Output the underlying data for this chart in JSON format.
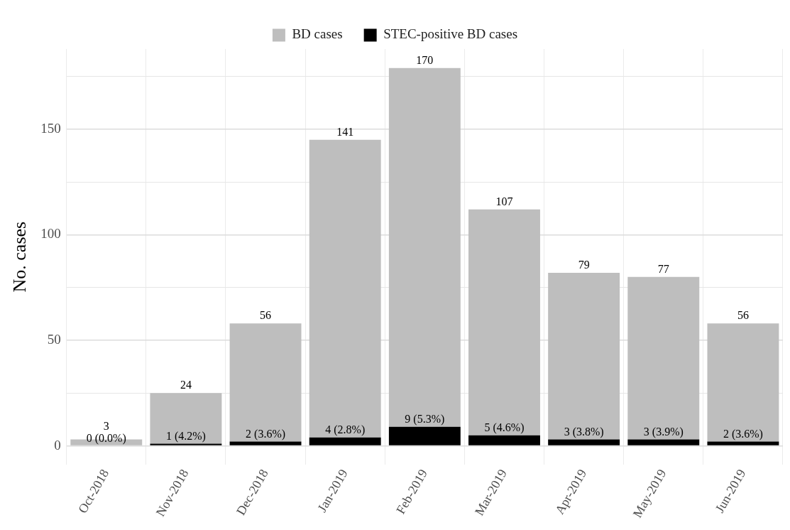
{
  "chart_data": {
    "type": "bar",
    "stacked": true,
    "ylabel": "No. cases",
    "categories": [
      "Oct-2018",
      "Nov-2018",
      "Dec-2018",
      "Jan-2019",
      "Feb-2019",
      "Mar-2019",
      "Apr-2019",
      "May-2019",
      "Jun-2019"
    ],
    "series": [
      {
        "name": "STEC-positive BD cases",
        "color": "#000000",
        "values": [
          0,
          1,
          2,
          4,
          9,
          5,
          3,
          3,
          2
        ],
        "value_labels": [
          "0 (0.0%)",
          "1 (4.2%)",
          "2 (3.6%)",
          "4 (2.8%)",
          "9 (5.3%)",
          "5 (4.6%)",
          "3 (3.8%)",
          "3 (3.9%)",
          "2 (3.6%)"
        ]
      },
      {
        "name": "BD cases",
        "color": "#bebebe",
        "values": [
          3,
          24,
          56,
          141,
          170,
          107,
          79,
          77,
          56
        ],
        "value_labels": [
          "3",
          "24",
          "56",
          "141",
          "170",
          "107",
          "79",
          "77",
          "56"
        ]
      }
    ],
    "ylim": [
      -9,
      188
    ],
    "yticks": [
      0,
      {
        "value": 25,
        "label": null
      },
      50,
      {
        "value": 75,
        "label": null
      },
      100,
      {
        "value": 125,
        "label": null
      },
      150,
      {
        "value": 175,
        "label": null
      }
    ],
    "grid": true,
    "legend": "top"
  }
}
